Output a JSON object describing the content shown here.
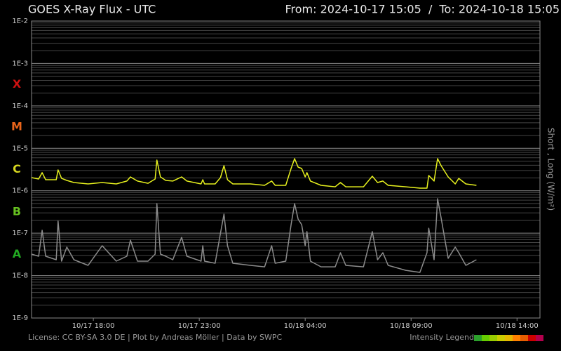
{
  "chart_data": {
    "type": "line",
    "title": "GOES X-Ray Flux - UTC",
    "range_label": "From: 2024-10-17 15:05  /  To: 2024-10-18 15:05",
    "y_label": "Short , Long (W/m²)",
    "footer": "License: CC BY-SA 3.0 DE | Plot by Andreas Möller | Data by SWPC",
    "intensity_legend": "Intensity Legend",
    "intensity_colors": [
      "#2ca02c",
      "#66cc00",
      "#99cc00",
      "#cccc00",
      "#e6b800",
      "#ff8000",
      "#e65c00",
      "#cc0000",
      "#b3004d"
    ],
    "class_labels": [
      {
        "label": "X",
        "color": "#cc1111"
      },
      {
        "label": "M",
        "color": "#e8641a"
      },
      {
        "label": "C",
        "color": "#d8d820"
      },
      {
        "label": "B",
        "color": "#66c020"
      },
      {
        "label": "A",
        "color": "#22aa22"
      }
    ],
    "log_scale": true,
    "grid": true,
    "ylim": [
      1e-09,
      0.01
    ],
    "yticks": [
      {
        "value": 1e-09,
        "label": "1E-9"
      },
      {
        "value": 1e-08,
        "label": "1E-8"
      },
      {
        "value": 1e-07,
        "label": "1E-7"
      },
      {
        "value": 1e-06,
        "label": "1E-6"
      },
      {
        "value": 1e-05,
        "label": "1E-5"
      },
      {
        "value": 0.0001,
        "label": "1E-4"
      },
      {
        "value": 0.001,
        "label": "1E-3"
      },
      {
        "value": 0.01,
        "label": "1E-2"
      }
    ],
    "xlim": [
      "2024-10-17 15:05",
      "2024-10-18 15:05"
    ],
    "xticks": [
      {
        "value": "2024-10-17 18:00",
        "label": "10/17 18:00"
      },
      {
        "value": "2024-10-17 23:00",
        "label": "10/17 23:00"
      },
      {
        "value": "2024-10-18 04:00",
        "label": "10/18 04:00"
      },
      {
        "value": "2024-10-18 09:00",
        "label": "10/18 09:00"
      },
      {
        "value": "2024-10-18 14:00",
        "label": "10/18 14:00"
      }
    ],
    "x": [
      "2024-10-17 15:05",
      "2024-10-17 15:25",
      "2024-10-17 15:35",
      "2024-10-17 15:45",
      "2024-10-17 16:15",
      "2024-10-17 16:20",
      "2024-10-17 16:30",
      "2024-10-17 16:45",
      "2024-10-17 17:05",
      "2024-10-17 17:45",
      "2024-10-17 18:25",
      "2024-10-17 19:05",
      "2024-10-17 19:35",
      "2024-10-17 19:45",
      "2024-10-17 20:05",
      "2024-10-17 20:35",
      "2024-10-17 20:55",
      "2024-10-17 21:00",
      "2024-10-17 21:10",
      "2024-10-17 21:25",
      "2024-10-17 21:45",
      "2024-10-17 22:10",
      "2024-10-17 22:25",
      "2024-10-17 23:05",
      "2024-10-17 23:10",
      "2024-10-17 23:15",
      "2024-10-17 23:45",
      "2024-10-18 00:00",
      "2024-10-18 00:10",
      "2024-10-18 00:20",
      "2024-10-18 00:35",
      "2024-10-18 01:25",
      "2024-10-18 02:05",
      "2024-10-18 02:25",
      "2024-10-18 02:35",
      "2024-10-18 03:05",
      "2024-10-18 03:20",
      "2024-10-18 03:30",
      "2024-10-18 03:40",
      "2024-10-18 03:50",
      "2024-10-18 04:00",
      "2024-10-18 04:05",
      "2024-10-18 04:15",
      "2024-10-18 04:45",
      "2024-10-18 05:25",
      "2024-10-18 05:40",
      "2024-10-18 05:55",
      "2024-10-18 06:45",
      "2024-10-18 07:10",
      "2024-10-18 07:25",
      "2024-10-18 07:40",
      "2024-10-18 07:55",
      "2024-10-18 08:45",
      "2024-10-18 09:25",
      "2024-10-18 09:45",
      "2024-10-18 09:50",
      "2024-10-18 10:05",
      "2024-10-18 10:15",
      "2024-10-18 10:25",
      "2024-10-18 10:45",
      "2024-10-18 11:05",
      "2024-10-18 11:15",
      "2024-10-18 11:35",
      "2024-10-18 12:05"
    ],
    "series": [
      {
        "color": "#e6f01e",
        "values": [
          2.04e-06,
          1.89e-06,
          2.67e-06,
          1.82e-06,
          1.82e-06,
          3.1e-06,
          1.96e-06,
          1.75e-06,
          1.56e-06,
          1.45e-06,
          1.56e-06,
          1.45e-06,
          1.69e-06,
          2.12e-06,
          1.69e-06,
          1.5e-06,
          1.89e-06,
          5.29e-06,
          2.12e-06,
          1.75e-06,
          1.69e-06,
          2.12e-06,
          1.69e-06,
          1.45e-06,
          1.82e-06,
          1.45e-06,
          1.45e-06,
          2.04e-06,
          3.9e-06,
          1.82e-06,
          1.45e-06,
          1.45e-06,
          1.34e-06,
          1.69e-06,
          1.34e-06,
          1.34e-06,
          3.35e-06,
          5.71e-06,
          3.61e-06,
          3.35e-06,
          2.12e-06,
          2.67e-06,
          1.69e-06,
          1.34e-06,
          1.24e-06,
          1.56e-06,
          1.24e-06,
          1.24e-06,
          2.2e-06,
          1.56e-06,
          1.69e-06,
          1.34e-06,
          1.24e-06,
          1.15e-06,
          1.15e-06,
          2.29e-06,
          1.69e-06,
          5.71e-06,
          3.9e-06,
          2.12e-06,
          1.45e-06,
          1.96e-06,
          1.45e-06,
          1.34e-06
        ]
      },
      {
        "color": "#8c8c8c",
        "values": [
          3.21e-08,
          2.86e-08,
          1.17e-07,
          2.86e-08,
          2.36e-08,
          1.92e-07,
          2.19e-08,
          4.7e-08,
          2.36e-08,
          1.74e-08,
          5.07e-08,
          2.19e-08,
          2.86e-08,
          6.87e-08,
          2.19e-08,
          2.19e-08,
          3.21e-08,
          4.98e-07,
          3.21e-08,
          2.86e-08,
          2.36e-08,
          8e-08,
          2.86e-08,
          2.19e-08,
          5.07e-08,
          2.19e-08,
          1.95e-08,
          1e-07,
          2.81e-07,
          5.07e-08,
          1.95e-08,
          1.74e-08,
          1.61e-08,
          5.07e-08,
          1.95e-08,
          2.19e-08,
          1.59e-07,
          4.98e-07,
          2.15e-07,
          1.59e-07,
          5.07e-08,
          1.09e-07,
          2.19e-08,
          1.61e-08,
          1.61e-08,
          3.46e-08,
          1.74e-08,
          1.61e-08,
          1.09e-07,
          2.36e-08,
          3.46e-08,
          1.74e-08,
          1.33e-08,
          1.19e-08,
          3.46e-08,
          1.31e-07,
          2.36e-08,
          6.5e-07,
          2.32e-07,
          2.55e-08,
          4.7e-08,
          3.46e-08,
          1.74e-08,
          2.36e-08
        ]
      }
    ]
  }
}
